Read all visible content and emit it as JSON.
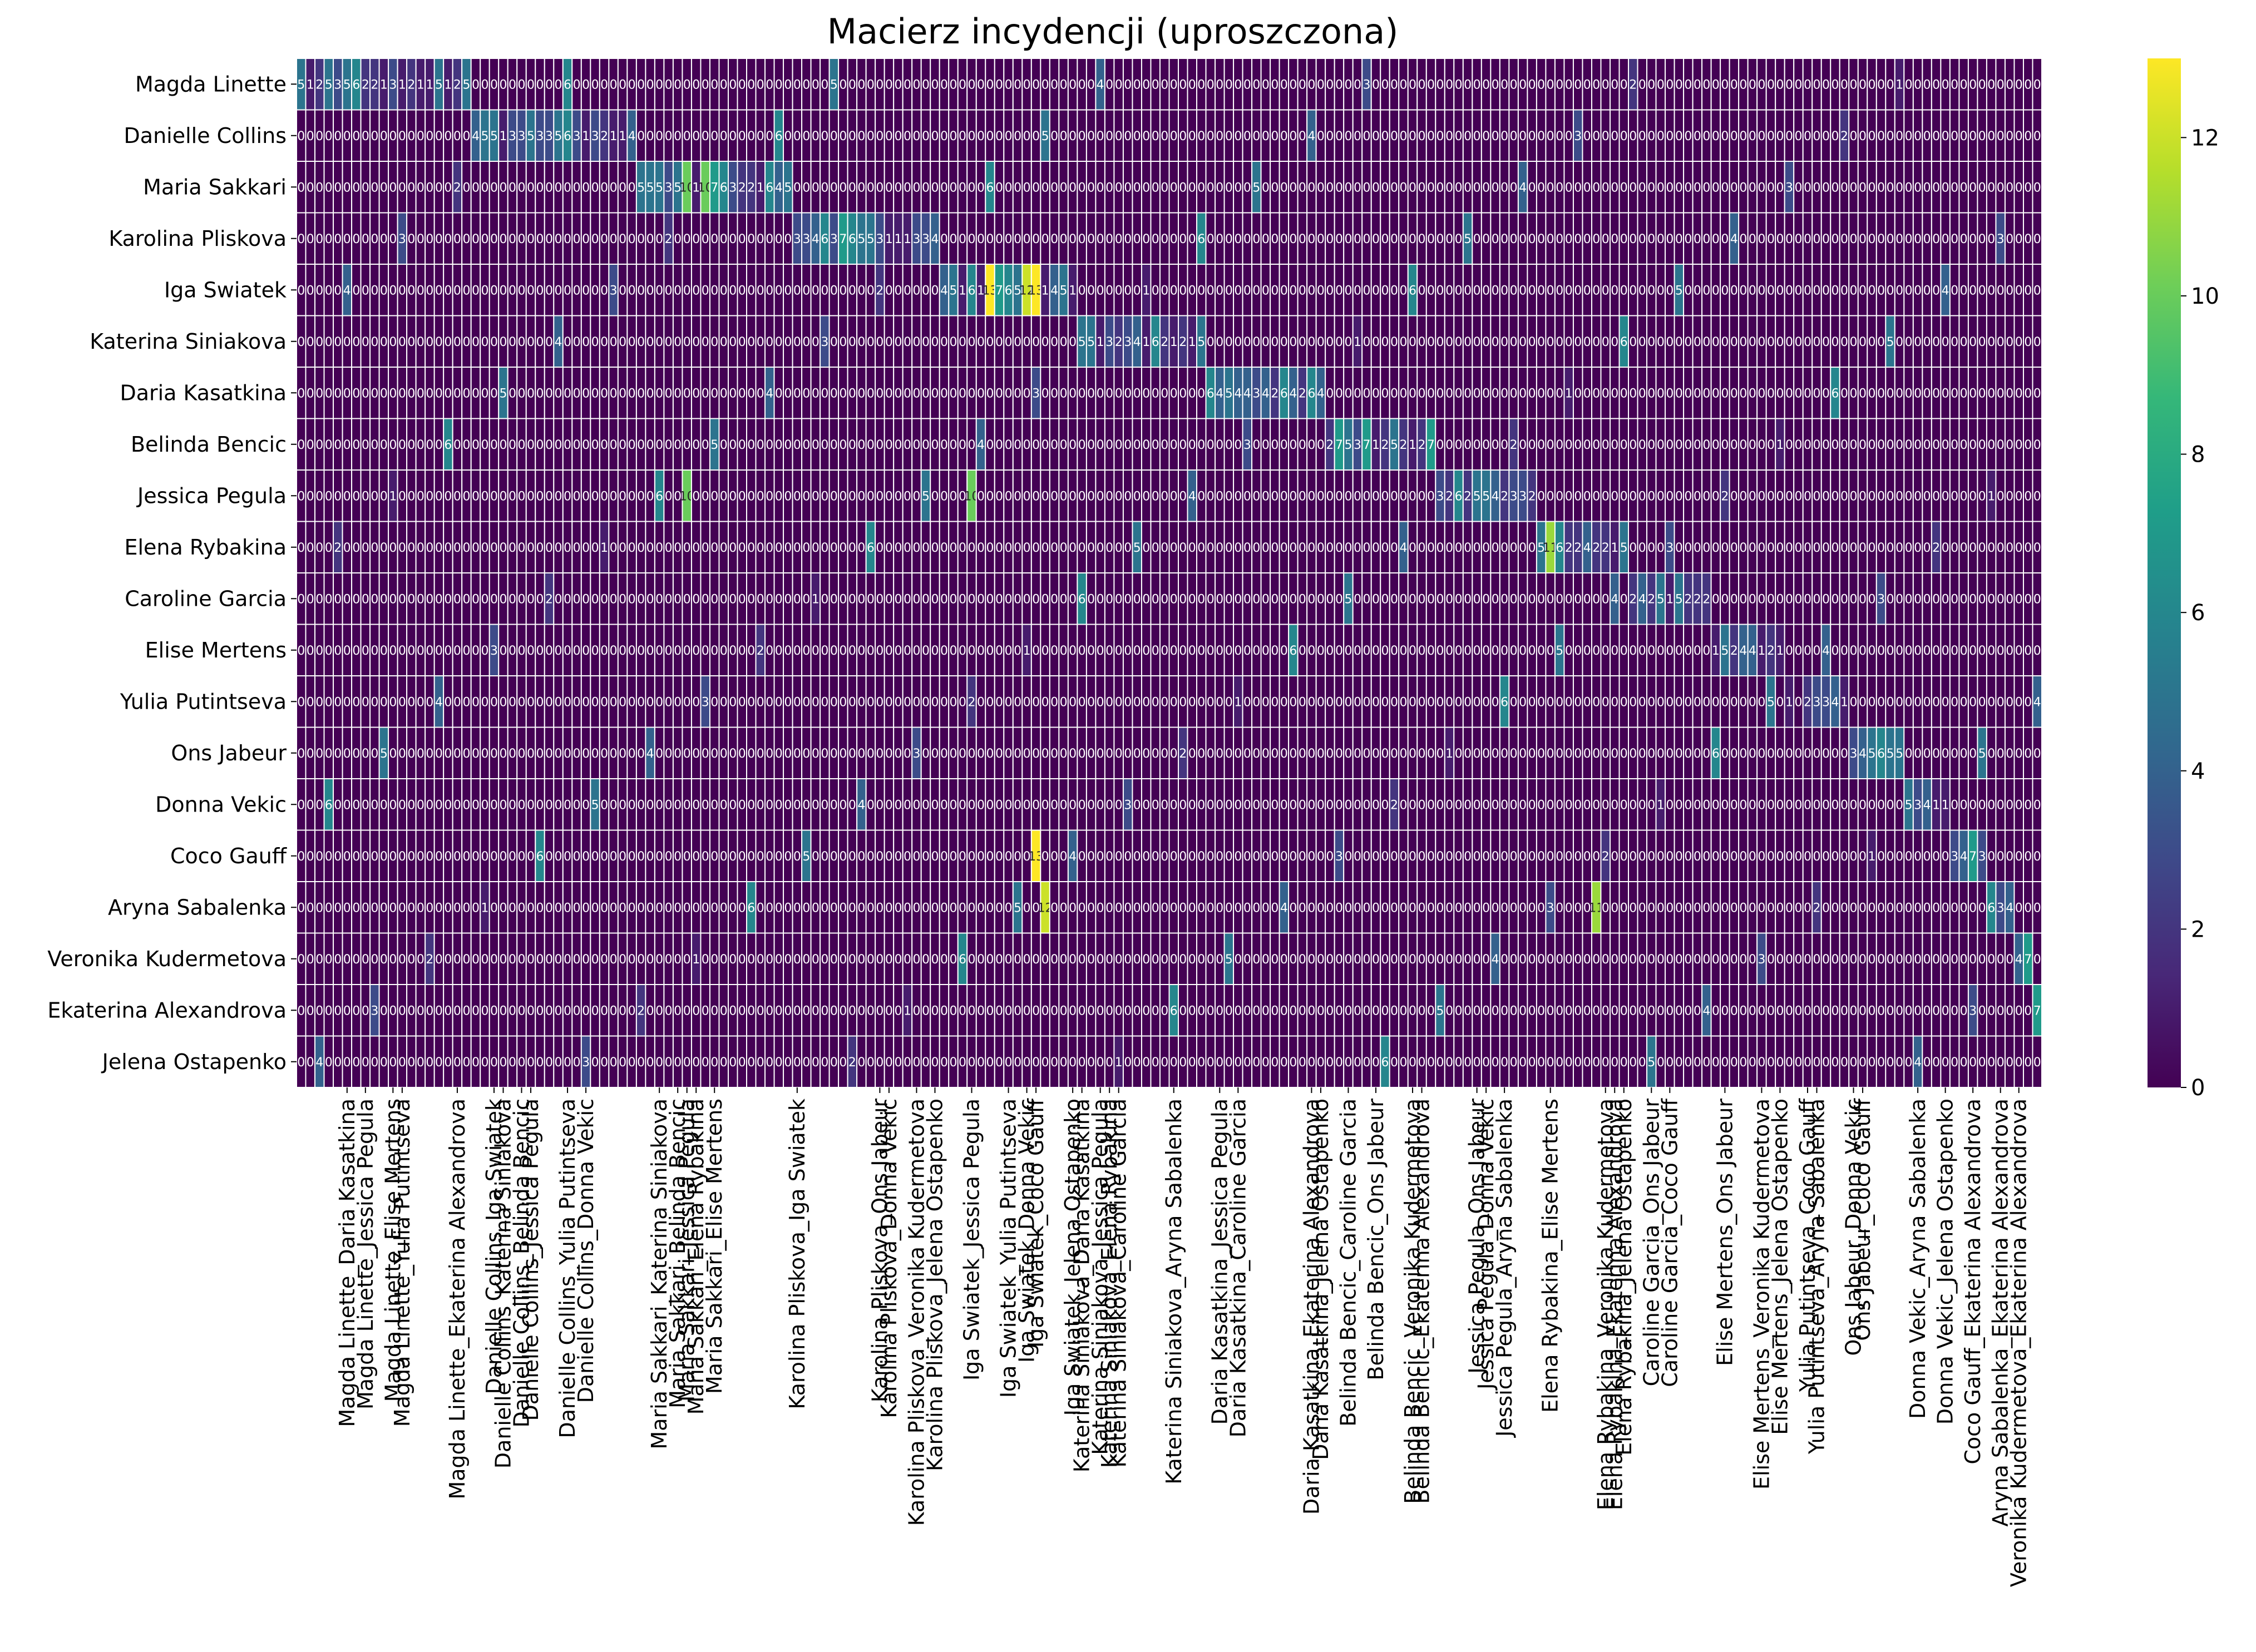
{
  "chart_data": {
    "type": "heatmap",
    "title": "Macierz incydencji (uproszczona)",
    "xlabel": "",
    "ylabel": "",
    "colormap": "viridis",
    "vmin": 0,
    "vmax": 13,
    "colorbar_ticks": [
      0,
      2,
      4,
      6,
      8,
      10,
      12
    ],
    "annotated": true,
    "grid_color": "#ffffff",
    "rows": [
      "Magda Linette",
      "Danielle Collins",
      "Maria Sakkari",
      "Karolina Pliskova",
      "Iga Swiatek",
      "Katerina Siniakova",
      "Daria Kasatkina",
      "Belinda Bencic",
      "Jessica Pegula",
      "Elena Rybakina",
      "Caroline Garcia",
      "Elise Mertens",
      "Yulia Putintseva",
      "Ons Jabeur",
      "Donna Vekic",
      "Coco Gauff",
      "Aryna Sabalenka",
      "Veronika Kudermetova",
      "Ekaterina Alexandrova",
      "Jelena Ostapenko"
    ],
    "n_columns": 190,
    "shown_column_labels": [
      "Magda Linette_Ekaterina Alexandrova",
      "Magda Linette_Yulia Putintseva",
      "Magda Linette_Daria Kasatkina",
      "Magda Linette_Elise Mertens",
      "Magda Linette_Jessica Pegula",
      "Danielle Collins_Katerina Siniakova",
      "Danielle Collins_Yulia Putintseva",
      "Danielle Collins_Iga Swiatek",
      "Danielle Collins_Jessica Pegula",
      "Danielle Collins_Donna Vekic",
      "Danielle Collins_Belinda Bencic",
      "Maria Sakkari_Elise Mertens",
      "Maria Sakkari_Katerina Siniakova",
      "Maria Sakkari_Jessica Pegula",
      "Maria Sakkari_Elena Rybakina",
      "Maria Sakkari_Belinda Bencic",
      "Karolina Pliskova_Ons Jabeur",
      "Karolina Pliskova_Jelena Ostapenko",
      "Karolina Pliskova_Donna Vekic",
      "Karolina Pliskova_Iga Swiatek",
      "Karolina Pliskova_Veronika Kudermetova",
      "Iga Swiatek_Jelena Ostapenko",
      "Iga Swiatek_Jessica Pegula",
      "Iga Swiatek_Coco Gauff",
      "Iga Swiatek_Yulia Putintseva",
      "Iga Swiatek_Donna Vekic",
      "Katerina Siniakova_Elena Rybakina",
      "Katerina Siniakova_Daria Kasatkina",
      "Katerina Siniakova_Jessica Pegula",
      "Katerina Siniakova_Caroline Garcia",
      "Katerina Siniakova_Aryna Sabalenka",
      "Daria Kasatkina_Caroline Garcia",
      "Daria Kasatkina_Ekaterina Alexandrova",
      "Daria Kasatkina_Jessica Pegula",
      "Daria Kasatkina_Jelena Ostapenko",
      "Belinda Bencic_Veronika Kudermetova",
      "Belinda Bencic_Ekaterina Alexandrova",
      "Belinda Bencic_Ons Jabeur",
      "Belinda Bencic_Caroline Garcia",
      "Jessica Pegula_Aryna Sabalenka",
      "Jessica Pegula_Ons Jabeur",
      "Jessica Pegula_Donna Vekic",
      "Elena Rybakina_Jelena Ostapenko",
      "Elena Rybakina_Elise Mertens",
      "Elena Rybakina_Veronika Kudermetova",
      "Elena Rybakina_Ekaterina Alexandrova",
      "Caroline Garcia_Ons Jabeur",
      "Caroline Garcia_Coco Gauff",
      "Elise Mertens_Jelena Ostapenko",
      "Elise Mertens_Veronika Kudermetova",
      "Elise Mertens_Ons Jabeur",
      "Yulia Putintseva_Aryna Sabalenka",
      "Yulia Putintseva_Coco Gauff",
      "Ons Jabeur_Donna Vekic",
      "Ons Jabeur_Coco Gauff",
      "Donna Vekic_Aryna Sabalenka",
      "Donna Vekic_Jelena Ostapenko",
      "Coco Gauff_Ekaterina Alexandrova",
      "Aryna Sabalenka_Ekaterina Alexandrova",
      "Veronika Kudermetova_Ekaterina Alexandrova"
    ],
    "block_patterns": [
      [
        5,
        1,
        2,
        5,
        3,
        5,
        6,
        2,
        2,
        1,
        3,
        1,
        2,
        1,
        1
      ],
      [
        4,
        5,
        5,
        1,
        3,
        3,
        5,
        3,
        3,
        5,
        6,
        3,
        1,
        3,
        2,
        1,
        1
      ],
      [
        5,
        5,
        5,
        3,
        5,
        2,
        1,
        10,
        7,
        6,
        3,
        2,
        2,
        1,
        6,
        4
      ],
      [
        3,
        3,
        4,
        6,
        3,
        7,
        6,
        5,
        5,
        3,
        1,
        1,
        1
      ],
      [
        4,
        5,
        1,
        6,
        1,
        13,
        7,
        6,
        5,
        4,
        12,
        1
      ],
      [
        5,
        5,
        1,
        3,
        2,
        3,
        4,
        1,
        6,
        2,
        1,
        2,
        1
      ],
      [
        6,
        4,
        5,
        4,
        4,
        3,
        4,
        2,
        6,
        4,
        2
      ],
      [
        2,
        7,
        5,
        3,
        7,
        1,
        2,
        5,
        2,
        1
      ],
      [
        3,
        2,
        6,
        2,
        5,
        5,
        4,
        2,
        3
      ],
      [
        5,
        1,
        6,
        2,
        2,
        4,
        2,
        2,
        1
      ],
      [
        2,
        4,
        2,
        5,
        1,
        5,
        2,
        2
      ],
      [
        1,
        5,
        2,
        4,
        4,
        1,
        2,
        1
      ],
      [
        1,
        0,
        2,
        3,
        3,
        4,
        1,
        2
      ],
      [
        3,
        4,
        5,
        6,
        5,
        5
      ],
      [
        5,
        3,
        4,
        1,
        1
      ],
      [
        3,
        4,
        7,
        3
      ],
      [
        6,
        3,
        4
      ],
      [
        4,
        7,
        2
      ],
      [
        7,
        7
      ],
      [
        2,
        7
      ]
    ],
    "scattered_peaks": [
      {
        "row": "Maria Sakkari",
        "col": "Maria Sakkari_Jessica Pegula",
        "value": 10
      },
      {
        "row": "Iga Swiatek",
        "col": "Iga Swiatek_Coco Gauff",
        "value": 13
      },
      {
        "row": "Iga Swiatek",
        "col": "Iga Swiatek_Donna Vekic",
        "value": 12
      },
      {
        "row": "Jessica Pegula",
        "col": "Maria Sakkari_Jessica Pegula",
        "value": 10
      },
      {
        "row": "Jessica Pegula",
        "col": "Iga Swiatek_Jessica Pegula",
        "value": 10
      },
      {
        "row": "Elena Rybakina",
        "col": "Elena Rybakina_Elise Mertens",
        "value": 11
      },
      {
        "row": "Coco Gauff",
        "col": "Iga Swiatek_Coco Gauff",
        "value": 13
      },
      {
        "row": "Aryna Sabalenka",
        "col": "Iga Swiatek_Aryna Sabalenka",
        "value": 12
      },
      {
        "row": "Aryna Sabalenka",
        "col": "Elena Rybakina_Aryna Sabalenka",
        "value": 11
      }
    ],
    "colors": [
      "#440154",
      "#482878",
      "#3e4989",
      "#31688e",
      "#26828e",
      "#1f9e89",
      "#35b779",
      "#6ece58",
      "#b5de2b",
      "#fde725"
    ]
  }
}
